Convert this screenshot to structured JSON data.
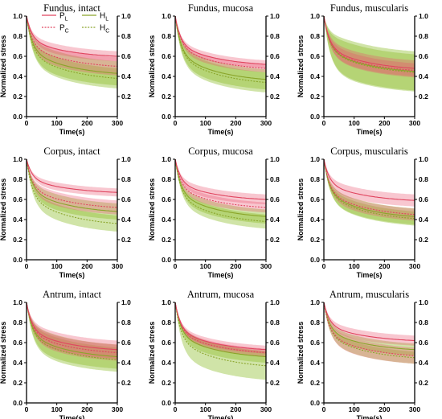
{
  "colors": {
    "P_line": "#e0455f",
    "P_band": "#e8506e",
    "H_line": "#8aa52a",
    "H_band": "#8fbf2f"
  },
  "legend": {
    "entries": [
      {
        "label": "P",
        "sub": "L",
        "style": "solid",
        "series": "P"
      },
      {
        "label": "H",
        "sub": "L",
        "style": "solid",
        "series": "H"
      },
      {
        "label": "P",
        "sub": "C",
        "style": "dotted",
        "series": "P"
      },
      {
        "label": "H",
        "sub": "C",
        "style": "dotted",
        "series": "H"
      }
    ]
  },
  "chart_data": [
    {
      "type": "line",
      "title": "Fundus, intact",
      "xlabel": "Time(s)",
      "ylabel": "Normalized stress",
      "xlim": [
        0,
        300
      ],
      "ylim": [
        0,
        1
      ],
      "xticks": [
        "0",
        "100",
        "200",
        "300"
      ],
      "yticks": [
        "0.0",
        "0.2",
        "0.4",
        "0.6",
        "0.8",
        "1.0"
      ],
      "right_yticks": [
        "0.2",
        "0.4",
        "0.6",
        "0.8",
        "1.0"
      ],
      "series": [
        {
          "name": "PL",
          "style": "solid",
          "end": 0.6,
          "band": 0.05
        },
        {
          "name": "PC",
          "style": "dotted",
          "end": 0.5,
          "band": 0.09
        },
        {
          "name": "HL",
          "style": "solid",
          "end": 0.43,
          "band": 0.12
        },
        {
          "name": "HC",
          "style": "dotted",
          "end": 0.38,
          "band": 0.1
        }
      ]
    },
    {
      "type": "line",
      "title": "Fundus, mucosa",
      "xlabel": "Time(s)",
      "ylabel": "Normalized stress",
      "xlim": [
        0,
        300
      ],
      "ylim": [
        0,
        1
      ],
      "xticks": [
        "0",
        "100",
        "200",
        "300"
      ],
      "yticks": [
        "0.0",
        "0.2",
        "0.4",
        "0.6",
        "0.8",
        "1.0"
      ],
      "right_yticks": [
        "0.2",
        "0.4",
        "0.6",
        "0.8",
        "1.0"
      ],
      "series": [
        {
          "name": "PL",
          "style": "solid",
          "end": 0.52,
          "band": 0.04
        },
        {
          "name": "PC",
          "style": "dotted",
          "end": 0.48,
          "band": 0.04
        },
        {
          "name": "HL",
          "style": "solid",
          "end": 0.37,
          "band": 0.1
        },
        {
          "name": "HC",
          "style": "dotted",
          "end": 0.34,
          "band": 0.1
        }
      ]
    },
    {
      "type": "line",
      "title": "Fundus, muscularis",
      "xlabel": "Time(s)",
      "ylabel": "Normalized stress",
      "xlim": [
        0,
        300
      ],
      "ylim": [
        0,
        1
      ],
      "xticks": [
        "0",
        "100",
        "200",
        "300"
      ],
      "yticks": [
        "0.0",
        "0.2",
        "0.4",
        "0.6",
        "0.8",
        "1.0"
      ],
      "right_yticks": [
        "0.2",
        "0.4",
        "0.6",
        "0.8",
        "1.0"
      ],
      "series": [
        {
          "name": "PL",
          "style": "solid",
          "end": 0.48,
          "band": 0.08
        },
        {
          "name": "PC",
          "style": "dotted",
          "end": 0.46,
          "band": 0.07
        },
        {
          "name": "HL",
          "style": "solid",
          "end": 0.45,
          "band": 0.2
        },
        {
          "name": "HC",
          "style": "dotted",
          "end": 0.44,
          "band": 0.18
        }
      ]
    },
    {
      "type": "line",
      "title": "Corpus, intact",
      "xlabel": "Time(s)",
      "ylabel": "Normalized stress",
      "xlim": [
        0,
        300
      ],
      "ylim": [
        0,
        1
      ],
      "xticks": [
        "0",
        "100",
        "200",
        "300"
      ],
      "yticks": [
        "0.0",
        "0.2",
        "0.4",
        "0.6",
        "0.8",
        "1.0"
      ],
      "right_yticks": [
        "0.2",
        "0.4",
        "0.6",
        "0.8",
        "1.0"
      ],
      "series": [
        {
          "name": "PL",
          "style": "solid",
          "end": 0.67,
          "band": 0.04
        },
        {
          "name": "PC",
          "style": "dotted",
          "end": 0.52,
          "band": 0.07
        },
        {
          "name": "HL",
          "style": "solid",
          "end": 0.48,
          "band": 0.08
        },
        {
          "name": "HC",
          "style": "dotted",
          "end": 0.36,
          "band": 0.08
        }
      ]
    },
    {
      "type": "line",
      "title": "Corpus, mucosa",
      "xlabel": "Time(s)",
      "ylabel": "Normalized stress",
      "xlim": [
        0,
        300
      ],
      "ylim": [
        0,
        1
      ],
      "xticks": [
        "0",
        "100",
        "200",
        "300"
      ],
      "yticks": [
        "0.0",
        "0.2",
        "0.4",
        "0.6",
        "0.8",
        "1.0"
      ],
      "right_yticks": [
        "0.2",
        "0.4",
        "0.6",
        "0.8",
        "1.0"
      ],
      "series": [
        {
          "name": "PL",
          "style": "solid",
          "end": 0.6,
          "band": 0.05
        },
        {
          "name": "PC",
          "style": "dotted",
          "end": 0.52,
          "band": 0.05
        },
        {
          "name": "HL",
          "style": "solid",
          "end": 0.43,
          "band": 0.07
        },
        {
          "name": "HC",
          "style": "dotted",
          "end": 0.38,
          "band": 0.07
        }
      ]
    },
    {
      "type": "line",
      "title": "Corpus, muscularis",
      "xlabel": "Time(s)",
      "ylabel": "Normalized stress",
      "xlim": [
        0,
        300
      ],
      "ylim": [
        0,
        1
      ],
      "xticks": [
        "0",
        "100",
        "200",
        "300"
      ],
      "yticks": [
        "0.0",
        "0.2",
        "0.4",
        "0.6",
        "0.8",
        "1.0"
      ],
      "right_yticks": [
        "0.2",
        "0.4",
        "0.6",
        "0.8",
        "1.0"
      ],
      "series": [
        {
          "name": "PL",
          "style": "solid",
          "end": 0.59,
          "band": 0.06
        },
        {
          "name": "PC",
          "style": "dotted",
          "end": 0.45,
          "band": 0.06
        },
        {
          "name": "HL",
          "style": "solid",
          "end": 0.43,
          "band": 0.08
        },
        {
          "name": "HC",
          "style": "dotted",
          "end": 0.41,
          "band": 0.07
        }
      ]
    },
    {
      "type": "line",
      "title": "Antrum, intact",
      "xlabel": "Time(s)",
      "ylabel": "Normalized stress",
      "xlim": [
        0,
        300
      ],
      "ylim": [
        0,
        1
      ],
      "xticks": [
        "0",
        "100",
        "200",
        "300"
      ],
      "yticks": [
        "0.0",
        "0.2",
        "0.4",
        "0.6",
        "0.8",
        "1.0"
      ],
      "right_yticks": [
        "0.2",
        "0.4",
        "0.6",
        "0.8",
        "1.0"
      ],
      "series": [
        {
          "name": "PL",
          "style": "solid",
          "end": 0.53,
          "band": 0.09
        },
        {
          "name": "PC",
          "style": "dotted",
          "end": 0.5,
          "band": 0.08
        },
        {
          "name": "HL",
          "style": "solid",
          "end": 0.46,
          "band": 0.12
        },
        {
          "name": "HC",
          "style": "dotted",
          "end": 0.43,
          "band": 0.12
        }
      ]
    },
    {
      "type": "line",
      "title": "Antrum, mucosa",
      "xlabel": "Time(s)",
      "ylabel": "Normalized stress",
      "xlim": [
        0,
        300
      ],
      "ylim": [
        0,
        1
      ],
      "xticks": [
        "0",
        "100",
        "200",
        "300"
      ],
      "yticks": [
        "0.0",
        "0.2",
        "0.4",
        "0.6",
        "0.8",
        "1.0"
      ],
      "right_yticks": [
        "0.2",
        "0.4",
        "0.6",
        "0.8",
        "1.0"
      ],
      "series": [
        {
          "name": "PL",
          "style": "solid",
          "end": 0.53,
          "band": 0.04
        },
        {
          "name": "PC",
          "style": "dotted",
          "end": 0.5,
          "band": 0.04
        },
        {
          "name": "HL",
          "style": "solid",
          "end": 0.46,
          "band": 0.06
        },
        {
          "name": "HC",
          "style": "dotted",
          "end": 0.37,
          "band": 0.14
        }
      ]
    },
    {
      "type": "line",
      "title": "Antrum, muscularis",
      "xlabel": "Time(s)",
      "ylabel": "Normalized stress",
      "xlim": [
        0,
        300
      ],
      "ylim": [
        0,
        1
      ],
      "xticks": [
        "0",
        "100",
        "200",
        "300"
      ],
      "yticks": [
        "0.0",
        "0.2",
        "0.4",
        "0.6",
        "0.8",
        "1.0"
      ],
      "right_yticks": [
        "0.2",
        "0.4",
        "0.6",
        "0.8",
        "1.0"
      ],
      "series": [
        {
          "name": "PL",
          "style": "solid",
          "end": 0.62,
          "band": 0.05
        },
        {
          "name": "PC",
          "style": "dotted",
          "end": 0.47,
          "band": 0.08
        },
        {
          "name": "HL",
          "style": "solid",
          "end": 0.53,
          "band": 0.06
        },
        {
          "name": "HC",
          "style": "dotted",
          "end": 0.45,
          "band": 0.06
        }
      ]
    }
  ]
}
